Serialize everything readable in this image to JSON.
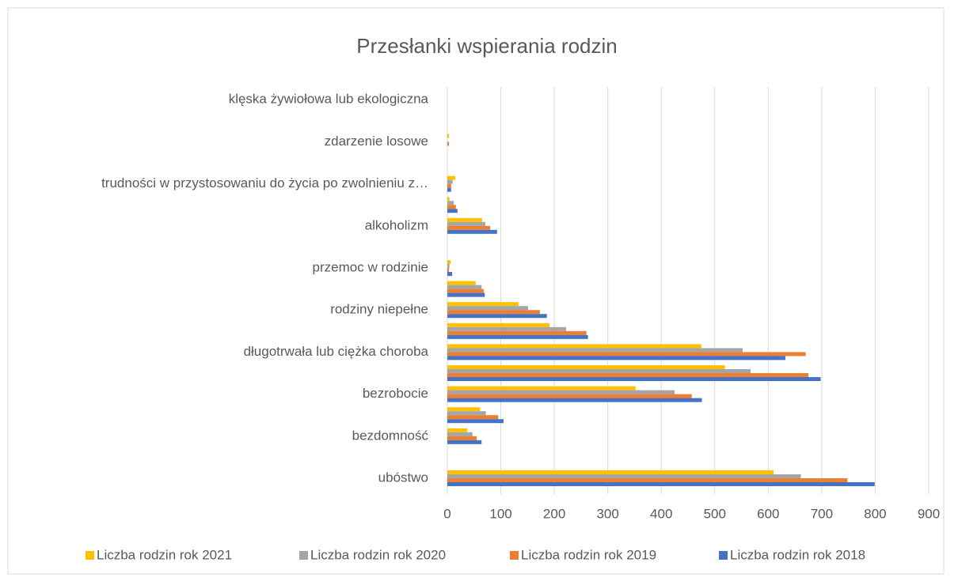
{
  "chart_data": {
    "type": "bar",
    "orientation": "horizontal",
    "title": "Przesłanki wspierania rodzin",
    "categories": [
      "ubóstwo",
      null,
      "bezdomność",
      null,
      "bezrobocie",
      null,
      "długotrwała lub ciężka choroba",
      null,
      "rodziny niepełne",
      null,
      "przemoc w rodzinie",
      null,
      "alkoholizm",
      null,
      "trudności w przystosowaniu do życia po zwolnieniu z…",
      null,
      "zdarzenie losowe",
      null,
      "klęska żywiołowa lub ekologiczna"
    ],
    "series": [
      {
        "name": "Liczba rodzin rok 2021",
        "color": "#ffc000",
        "values": [
          610,
          0,
          37,
          61,
          352,
          519,
          475,
          191,
          133,
          53,
          6,
          0,
          65,
          4,
          15,
          0,
          3,
          0,
          0
        ]
      },
      {
        "name": "Liczba rodzin rok 2020",
        "color": "#a5a5a5",
        "values": [
          661,
          0,
          47,
          72,
          425,
          567,
          552,
          222,
          151,
          64,
          4,
          0,
          71,
          12,
          10,
          0,
          0,
          0,
          0
        ]
      },
      {
        "name": "Liczba rodzin rok 2019",
        "color": "#ed7d31",
        "values": [
          748,
          0,
          55,
          95,
          457,
          675,
          670,
          260,
          173,
          68,
          3,
          0,
          80,
          16,
          7,
          0,
          3,
          0,
          0
        ]
      },
      {
        "name": "Liczba rodzin rok 2018",
        "color": "#4472c4",
        "values": [
          799,
          0,
          64,
          105,
          476,
          698,
          632,
          263,
          186,
          70,
          9,
          0,
          93,
          19,
          7,
          0,
          0,
          0,
          0
        ]
      }
    ],
    "xlim": [
      0,
      900
    ],
    "xticks": [
      0,
      100,
      200,
      300,
      400,
      500,
      600,
      700,
      800,
      900
    ],
    "grid": true,
    "legend": "bottom"
  }
}
